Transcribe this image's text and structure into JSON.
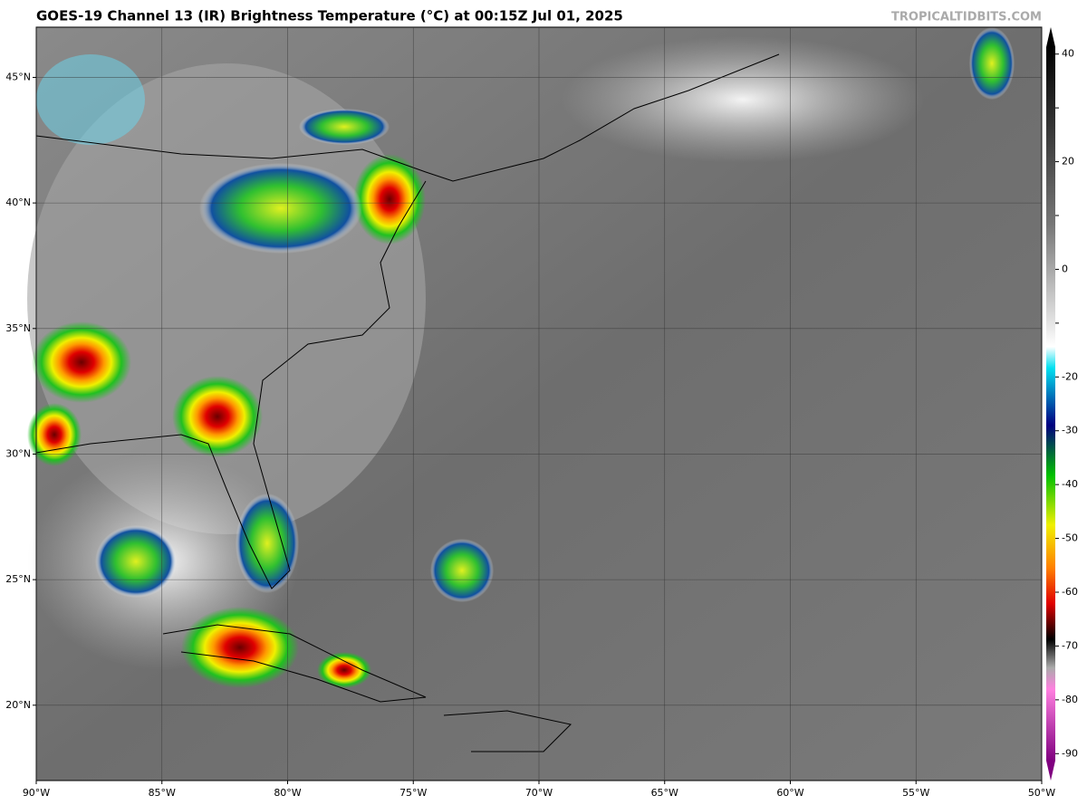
{
  "header": {
    "title": "GOES-19 Channel 13 (IR) Brightness Temperature (°C) at 00:15Z Jul 01, 2025",
    "credit": "TROPICALTIDBITS.COM"
  },
  "map": {
    "lonlim": [
      -90,
      -50
    ],
    "latlim": [
      17,
      47
    ],
    "lonticks": [
      {
        "value": -90,
        "label": "90°W"
      },
      {
        "value": -85,
        "label": "85°W"
      },
      {
        "value": -80,
        "label": "80°W"
      },
      {
        "value": -75,
        "label": "75°W"
      },
      {
        "value": -70,
        "label": "70°W"
      },
      {
        "value": -65,
        "label": "65°W"
      },
      {
        "value": -60,
        "label": "60°W"
      },
      {
        "value": -55,
        "label": "55°W"
      },
      {
        "value": -50,
        "label": "50°W"
      }
    ],
    "latticks": [
      {
        "value": 20,
        "label": "20°N"
      },
      {
        "value": 25,
        "label": "25°N"
      },
      {
        "value": 30,
        "label": "30°N"
      },
      {
        "value": 35,
        "label": "35°N"
      },
      {
        "value": 40,
        "label": "40°N"
      },
      {
        "value": 45,
        "label": "45°N"
      }
    ]
  },
  "colorbar": {
    "lim": [
      -95,
      45
    ],
    "ticks": [
      40,
      30,
      20,
      10,
      0,
      -10,
      -20,
      -30,
      -40,
      -50,
      -60,
      -70,
      -80,
      -90
    ],
    "labeled": [
      40,
      20,
      0,
      -20,
      -30,
      -40,
      -50,
      -60,
      -70,
      -80,
      -90
    ]
  }
}
